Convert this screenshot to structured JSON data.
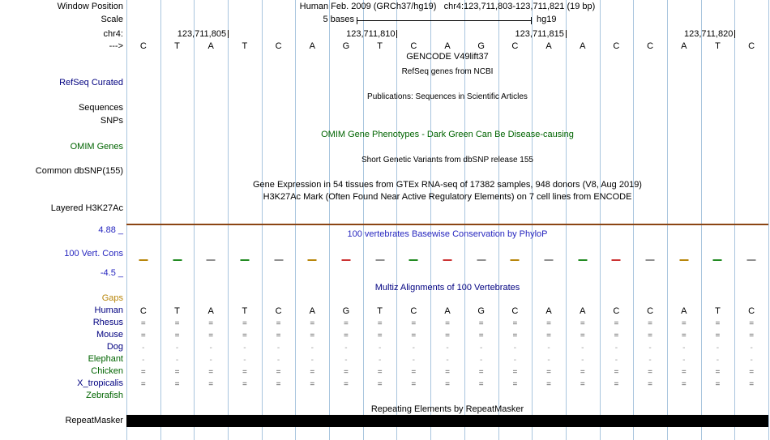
{
  "colors": {
    "grid": "#a9c5de",
    "navy": "#000080",
    "green": "#006400",
    "blue": "#2626bf",
    "orange": "#b8860b",
    "black": "#000000",
    "h3k27ac_line": "#8b4513",
    "repeat_bar": "#000000"
  },
  "header": {
    "window_position_label": "Window Position",
    "title": "Human Feb. 2009 (GRCh37/hg19)   chr4:123,711,803-123,711,821 (19 bp)",
    "scale_label": "Scale",
    "scale_value": "5 bases",
    "assembly": "hg19",
    "chrom_label": "chr4:",
    "strand_label": "--->",
    "position_ticks": [
      {
        "label": "123,711,805",
        "cell": 3
      },
      {
        "label": "123,711,810",
        "cell": 8
      },
      {
        "label": "123,711,815",
        "cell": 13
      },
      {
        "label": "123,711,820",
        "cell": 18
      }
    ]
  },
  "sequence": [
    "C",
    "T",
    "A",
    "T",
    "C",
    "A",
    "G",
    "T",
    "C",
    "A",
    "G",
    "C",
    "A",
    "A",
    "C",
    "C",
    "A",
    "T",
    "C"
  ],
  "tracks": {
    "gencode": {
      "center_title": "GENCODE V49lift37"
    },
    "refseq": {
      "center_title": "RefSeq genes from NCBI",
      "left_label": "RefSeq Curated"
    },
    "publications": {
      "center_title": "Publications: Sequences in Scientific Articles",
      "left_label_1": "Sequences",
      "left_label_2": "SNPs"
    },
    "omim": {
      "center_title": "OMIM Gene Phenotypes - Dark Green Can Be Disease-causing",
      "left_label": "OMIM Genes"
    },
    "dbsnp": {
      "center_title": "Short Genetic Variants from dbSNP release 155",
      "left_label": "Common dbSNP(155)"
    },
    "gtex": {
      "center_title": "Gene Expression in 54 tissues from GTEx RNA-seq of 17382 samples, 948 donors (V8, Aug 2019)"
    },
    "h3k27ac": {
      "center_title": "H3K27Ac Mark (Often Found Near Active Regulatory Elements) on 7 cell lines from ENCODE",
      "left_label": "Layered H3K27Ac"
    },
    "phylop": {
      "center_title": "100 vertebrates Basewise Conservation by PhyloP",
      "left_label": "100 Vert. Cons",
      "max_value": "4.88 _",
      "min_value": "-4.5 _",
      "tick_colors": [
        "#b8860b",
        "#228b22",
        "#909090",
        "#228b22",
        "#909090",
        "#b8860b",
        "#cc3333",
        "#909090",
        "#228b22",
        "#cc3333",
        "#909090",
        "#b8860b",
        "#909090",
        "#228b22",
        "#cc3333",
        "#909090",
        "#b8860b",
        "#228b22",
        "#909090"
      ]
    },
    "multiz": {
      "center_title": "Multiz Alignments of 100 Vertebrates",
      "rows": [
        {
          "label": "Gaps",
          "color": "orange",
          "symbol": "",
          "cell_color": "#555555"
        },
        {
          "label": "Human",
          "color": "navy",
          "cells": [
            "C",
            "T",
            "A",
            "T",
            "C",
            "A",
            "G",
            "T",
            "C",
            "A",
            "G",
            "C",
            "A",
            "A",
            "C",
            "C",
            "A",
            "T",
            "C"
          ],
          "cell_color": "#000000"
        },
        {
          "label": "Rhesus",
          "color": "navy",
          "symbol": "=",
          "cell_color": "#555555"
        },
        {
          "label": "Mouse",
          "color": "navy",
          "symbol": "=",
          "cell_color": "#555555"
        },
        {
          "label": "Dog",
          "color": "navy",
          "symbol": "-",
          "cell_color": "#999999"
        },
        {
          "label": "Elephant",
          "color": "green",
          "symbol": "-",
          "cell_color": "#999999"
        },
        {
          "label": "Chicken",
          "color": "green",
          "symbol": "=",
          "cell_color": "#555555"
        },
        {
          "label": "X_tropicalis",
          "color": "navy",
          "symbol": "=",
          "cell_color": "#555555"
        },
        {
          "label": "Zebrafish",
          "color": "green",
          "symbol": "",
          "cell_color": "#555555"
        }
      ]
    },
    "repeatmasker": {
      "center_title": "Repeating Elements by RepeatMasker",
      "left_label": "RepeatMasker"
    }
  }
}
